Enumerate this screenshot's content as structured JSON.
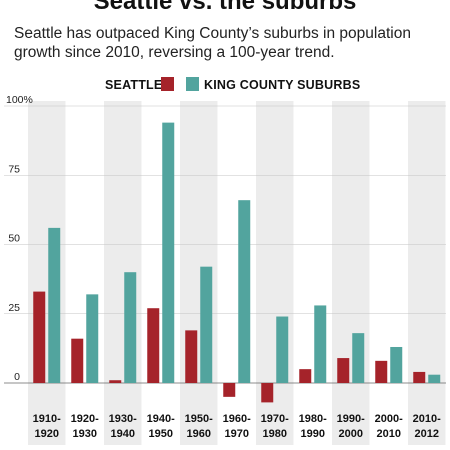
{
  "header": {
    "title": "Seattle vs. the suburbs",
    "subtitle": "Seattle has outpaced King County’s suburbs in population growth since 2010, reversing a 100-year trend."
  },
  "legend": {
    "seattle_label": "SEATTLE",
    "suburbs_label": "KING COUNTY SUBURBS"
  },
  "colors": {
    "seattle": "#a5232a",
    "suburbs": "#52a49e",
    "band": "#ececec"
  },
  "chart_data": {
    "type": "bar",
    "categories": [
      [
        "1910-",
        "1920"
      ],
      [
        "1920-",
        "1930"
      ],
      [
        "1930-",
        "1940"
      ],
      [
        "1940-",
        "1950"
      ],
      [
        "1950-",
        "1960"
      ],
      [
        "1960-",
        "1970"
      ],
      [
        "1970-",
        "1980"
      ],
      [
        "1980-",
        "1990"
      ],
      [
        "1990-",
        "2000"
      ],
      [
        "2000-",
        "2010"
      ],
      [
        "2010-",
        "2012"
      ]
    ],
    "series": [
      {
        "name": "SEATTLE",
        "values": [
          33,
          16,
          1,
          27,
          19,
          -5,
          -7,
          5,
          9,
          8,
          4
        ]
      },
      {
        "name": "KING COUNTY SUBURBS",
        "values": [
          56,
          32,
          40,
          94,
          42,
          66,
          24,
          28,
          18,
          13,
          3
        ]
      }
    ],
    "yticks": [
      "0",
      "25",
      "50",
      "75",
      "100%"
    ],
    "ytick_values": [
      0,
      25,
      50,
      75,
      100
    ],
    "ylim": [
      -10,
      100
    ],
    "grid": true,
    "legend_position": "top-center"
  }
}
